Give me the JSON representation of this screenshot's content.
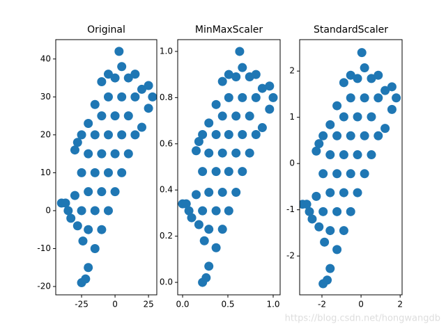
{
  "chart_data": [
    {
      "type": "scatter",
      "title": "Original",
      "color": "#1f77b4",
      "x": [
        -40,
        -37,
        -35,
        -33,
        -30,
        -28,
        -28,
        -30,
        -25,
        -22,
        -20,
        -24,
        -25,
        -25,
        -25,
        -20,
        -20,
        -20,
        -20,
        -15,
        -15,
        -15,
        -15,
        -15,
        -10,
        -10,
        -10,
        -10,
        -10,
        -5,
        -5,
        -5,
        -5,
        -5,
        0,
        0,
        0,
        0,
        3,
        5,
        5,
        5,
        5,
        10,
        10,
        10,
        15,
        15,
        15,
        20,
        20,
        25,
        25,
        28
      ],
      "y": [
        2,
        2,
        0,
        -2,
        4,
        -4,
        18,
        16,
        -19,
        -18,
        -15,
        -8,
        0,
        10,
        20,
        23,
        -5,
        5,
        15,
        -10,
        0,
        10,
        20,
        28,
        -5,
        5,
        15,
        25,
        34,
        0,
        10,
        20,
        30,
        36,
        5,
        15,
        25,
        35,
        42,
        10,
        20,
        30,
        38,
        15,
        25,
        35,
        20,
        30,
        36,
        22,
        32,
        27,
        33,
        30
      ],
      "xlim": [
        -44.3,
        31.2
      ],
      "ylim": [
        -22.2,
        45.1
      ],
      "xticks": [
        -25,
        0,
        25
      ],
      "yticks": [
        -20,
        -10,
        0,
        10,
        20,
        30,
        40
      ]
    },
    {
      "type": "scatter",
      "title": "MinMaxScaler",
      "color": "#1f77b4",
      "x": [
        0,
        0.04,
        0.07,
        0.1,
        0.15,
        0.18,
        0.18,
        0.15,
        0.22,
        0.26,
        0.29,
        0.24,
        0.22,
        0.22,
        0.22,
        0.29,
        0.29,
        0.29,
        0.29,
        0.37,
        0.37,
        0.37,
        0.37,
        0.37,
        0.44,
        0.44,
        0.44,
        0.44,
        0.44,
        0.51,
        0.51,
        0.51,
        0.51,
        0.51,
        0.59,
        0.59,
        0.59,
        0.59,
        0.63,
        0.66,
        0.66,
        0.66,
        0.66,
        0.74,
        0.74,
        0.74,
        0.81,
        0.81,
        0.81,
        0.88,
        0.88,
        0.96,
        0.96,
        1.0
      ],
      "y": [
        0.34,
        0.34,
        0.31,
        0.28,
        0.38,
        0.25,
        0.61,
        0.57,
        0,
        0.02,
        0.07,
        0.18,
        0.31,
        0.48,
        0.64,
        0.69,
        0.23,
        0.39,
        0.56,
        0.15,
        0.31,
        0.48,
        0.64,
        0.77,
        0.23,
        0.39,
        0.56,
        0.72,
        0.87,
        0.31,
        0.48,
        0.64,
        0.8,
        0.9,
        0.39,
        0.56,
        0.72,
        0.89,
        1.0,
        0.48,
        0.64,
        0.8,
        0.93,
        0.56,
        0.72,
        0.89,
        0.64,
        0.8,
        0.9,
        0.67,
        0.84,
        0.75,
        0.85,
        0.8
      ],
      "xlim": [
        -0.054,
        1.077
      ],
      "ylim": [
        -0.054,
        1.051
      ],
      "xticks": [
        {
          "value": 0,
          "label": "0.0"
        },
        0.5,
        {
          "value": 1,
          "label": "1.0"
        }
      ],
      "yticks": [
        {
          "value": 0,
          "label": "0.0"
        },
        0.2,
        0.4,
        0.6,
        0.8,
        {
          "value": 1,
          "label": "1.0"
        }
      ]
    },
    {
      "type": "scatter",
      "title": "StandardScaler",
      "color": "#1f77b4",
      "x": [
        -2.99,
        -2.78,
        -2.64,
        -2.5,
        -2.29,
        -2.15,
        -2.15,
        -2.29,
        -1.94,
        -1.73,
        -1.58,
        -1.87,
        -1.94,
        -1.94,
        -1.94,
        -1.58,
        -1.58,
        -1.58,
        -1.58,
        -1.23,
        -1.23,
        -1.23,
        -1.23,
        -1.23,
        -0.88,
        -0.88,
        -0.88,
        -0.88,
        -0.88,
        -0.53,
        -0.53,
        -0.53,
        -0.53,
        -0.53,
        -0.18,
        -0.18,
        -0.18,
        -0.18,
        0.04,
        0.18,
        0.18,
        0.18,
        0.18,
        0.53,
        0.53,
        0.53,
        0.88,
        0.88,
        0.88,
        1.23,
        1.23,
        1.58,
        1.58,
        1.8
      ],
      "y": [
        -0.88,
        -0.88,
        -1.04,
        -1.2,
        -0.71,
        -1.37,
        0.43,
        0.27,
        -2.6,
        -2.52,
        -2.27,
        -1.7,
        -1.04,
        -0.22,
        0.6,
        0.84,
        -1.45,
        -0.63,
        0.19,
        -1.86,
        -1.04,
        -0.22,
        0.6,
        1.25,
        -1.45,
        -0.63,
        0.19,
        1.01,
        1.75,
        -1.04,
        -0.22,
        0.6,
        1.42,
        1.91,
        -0.63,
        0.19,
        1.01,
        1.84,
        2.4,
        -0.22,
        0.6,
        1.42,
        2.07,
        0.19,
        1.01,
        1.84,
        0.6,
        1.42,
        1.91,
        0.76,
        1.58,
        1.17,
        1.66,
        1.42
      ],
      "xlim": [
        -3.14,
        2.1
      ],
      "ylim": [
        -2.84,
        2.68
      ],
      "xticks": [
        -2,
        0,
        2
      ],
      "yticks": [
        -2,
        -1,
        0,
        1,
        2
      ]
    }
  ],
  "watermark": "https://blog.csdn.net/hongwangdb"
}
